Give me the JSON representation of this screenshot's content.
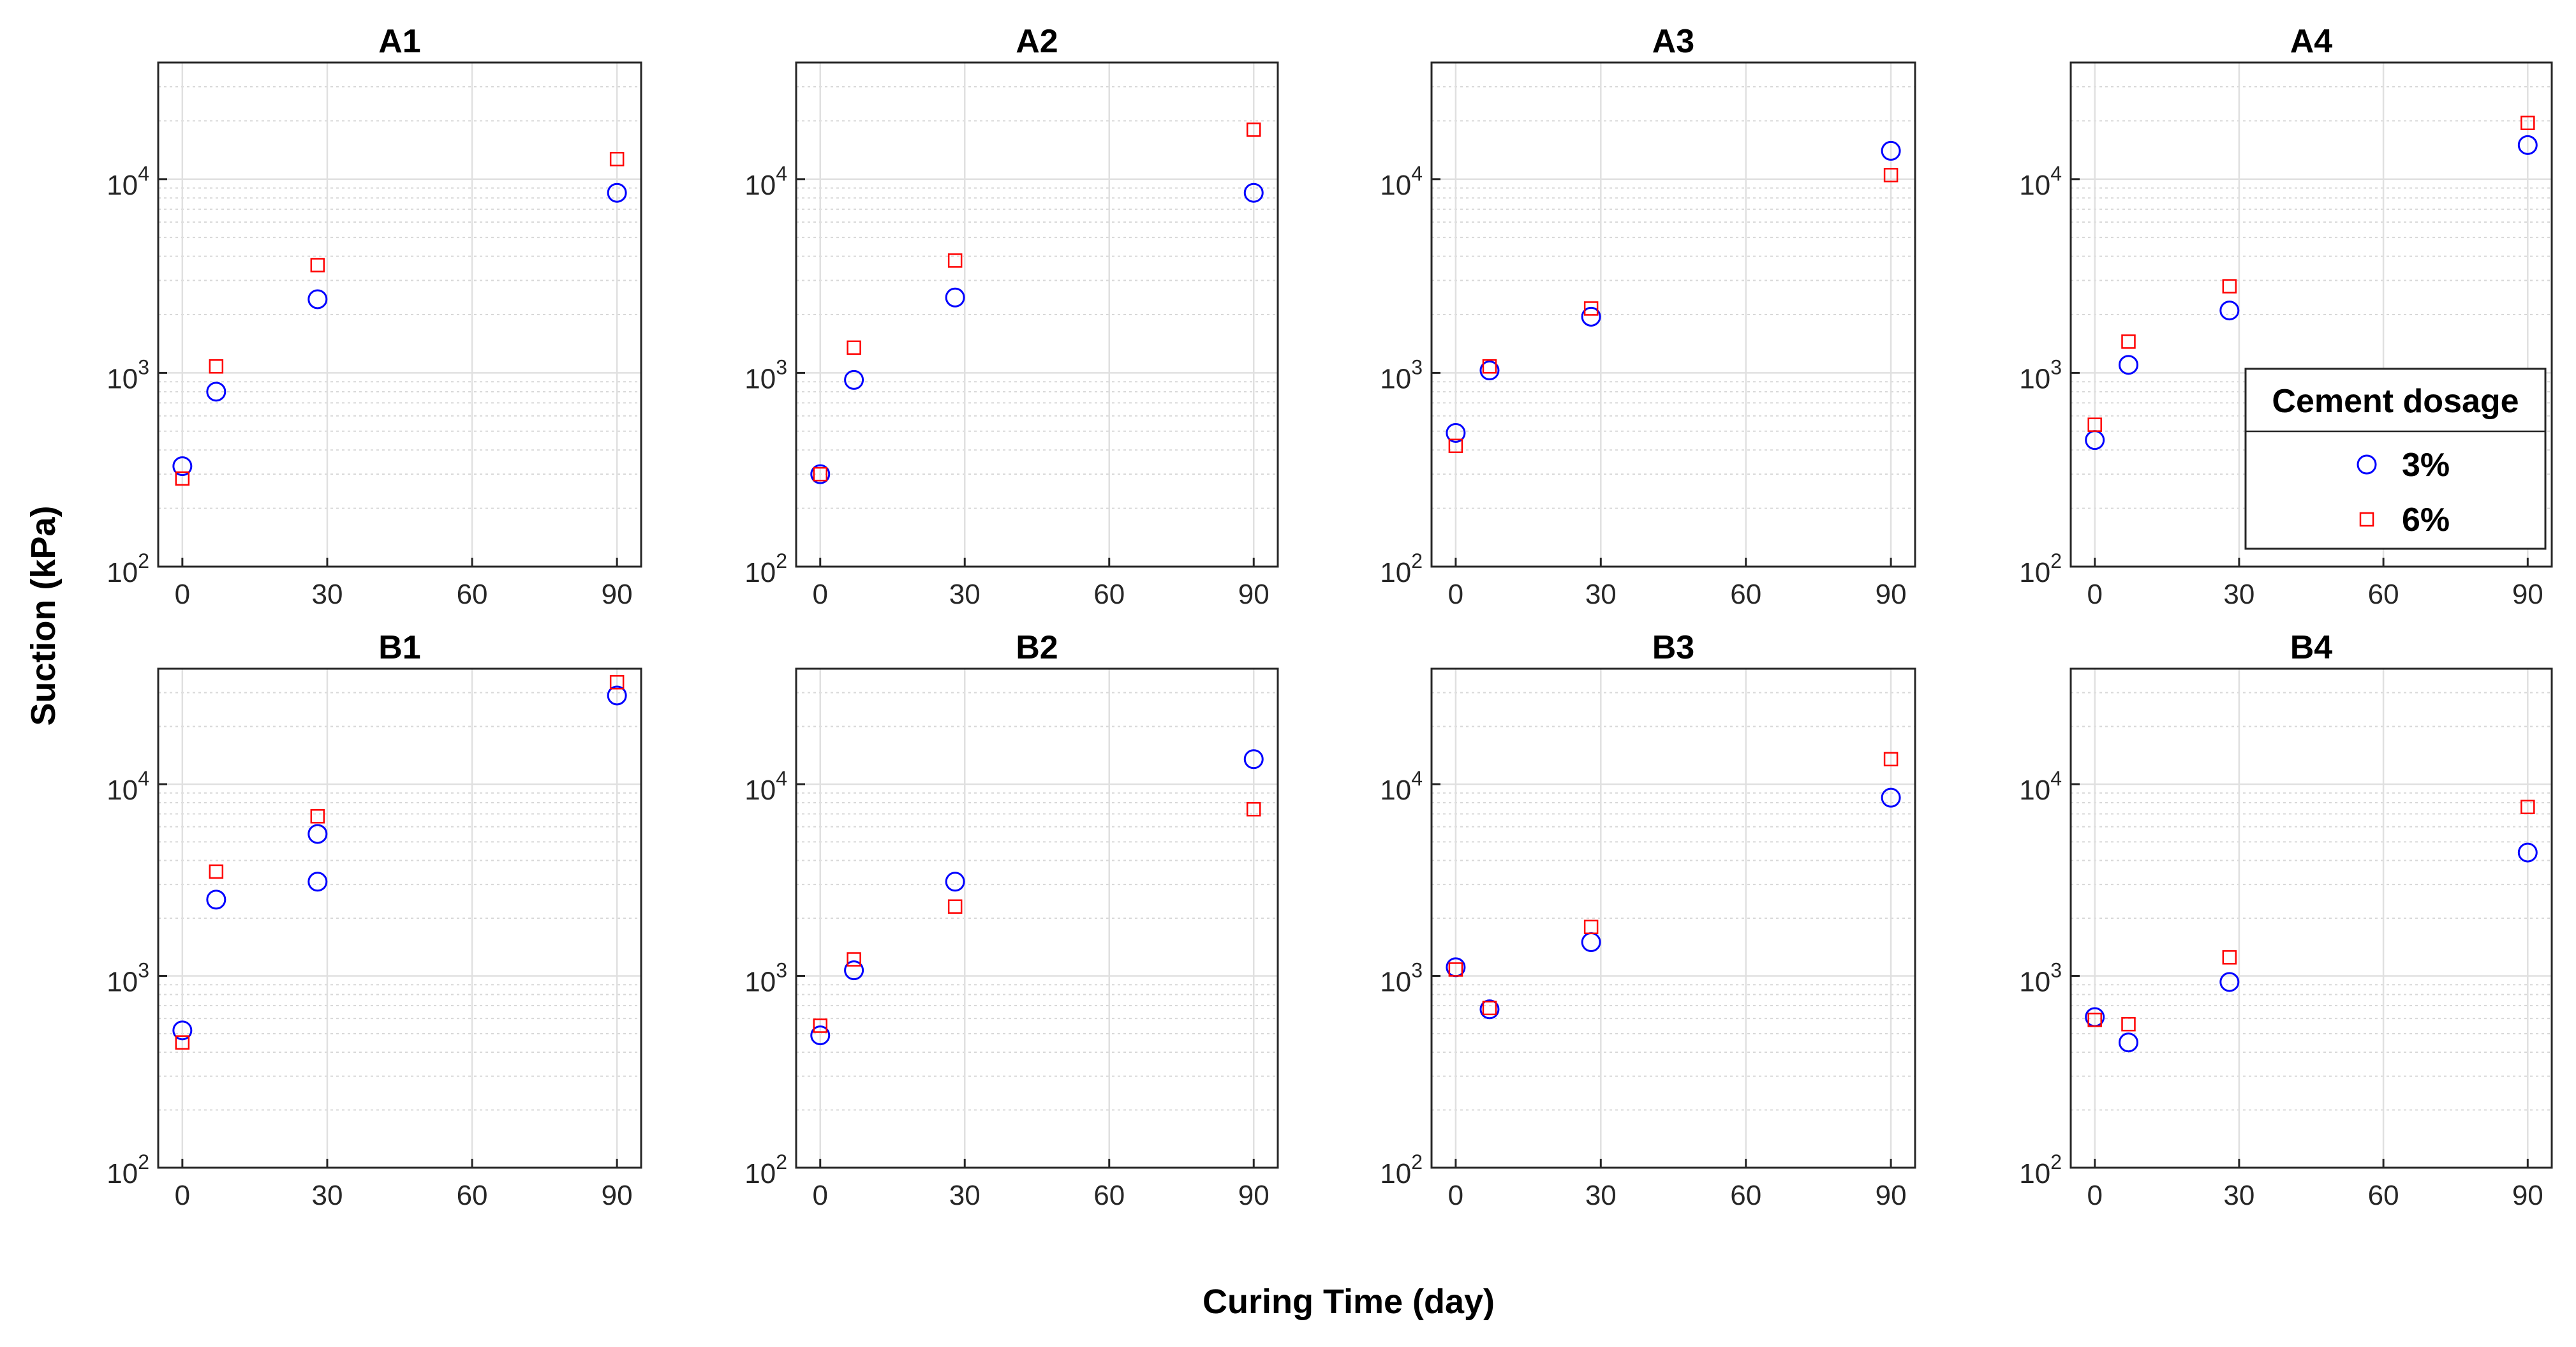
{
  "chart_data": {
    "type": "scatter",
    "xlabel": "Curing Time (day)",
    "ylabel": "Suction (kPa)",
    "xlim": [
      -5,
      95
    ],
    "ylim": [
      100,
      40000
    ],
    "yscale": "log",
    "xticks": [
      0,
      30,
      60,
      90
    ],
    "yticks": [
      100,
      1000,
      10000
    ],
    "grid": true,
    "colors": {
      "3%": "#0000ff",
      "6%": "#ff0000"
    },
    "legend": {
      "title": "Cement dosage",
      "entries": [
        "3%",
        "6%"
      ],
      "markers": [
        "circle",
        "square"
      ],
      "placement": "inside right of panel A4"
    },
    "panels": [
      {
        "title": "A1",
        "series": [
          {
            "name": "3%",
            "x": [
              0,
              7,
              28,
              90
            ],
            "y": [
              330,
              800,
              2400,
              8500
            ]
          },
          {
            "name": "6%",
            "x": [
              0,
              7,
              28,
              90
            ],
            "y": [
              285,
              1080,
              3600,
              12700
            ]
          }
        ]
      },
      {
        "title": "A2",
        "series": [
          {
            "name": "3%",
            "x": [
              0,
              7,
              28,
              90
            ],
            "y": [
              300,
              920,
              2450,
              8500
            ]
          },
          {
            "name": "6%",
            "x": [
              0,
              7,
              28,
              90
            ],
            "y": [
              300,
              1350,
              3800,
              18000
            ]
          }
        ]
      },
      {
        "title": "A3",
        "series": [
          {
            "name": "3%",
            "x": [
              0,
              7,
              28,
              90
            ],
            "y": [
              490,
              1030,
              1950,
              14000
            ]
          },
          {
            "name": "6%",
            "x": [
              0,
              7,
              28,
              90
            ],
            "y": [
              420,
              1080,
              2150,
              10500
            ]
          }
        ]
      },
      {
        "title": "A4",
        "series": [
          {
            "name": "3%",
            "x": [
              0,
              7,
              28,
              90
            ],
            "y": [
              450,
              1100,
              2100,
              15000
            ]
          },
          {
            "name": "6%",
            "x": [
              0,
              7,
              28,
              90
            ],
            "y": [
              540,
              1450,
              2800,
              19500
            ]
          }
        ]
      },
      {
        "title": "B1",
        "series": [
          {
            "name": "3%",
            "x": [
              0,
              7,
              28,
              28,
              90
            ],
            "y": [
              520,
              2500,
              5500,
              3100,
              29000
            ]
          },
          {
            "name": "6%",
            "x": [
              0,
              7,
              28,
              90
            ],
            "y": [
              450,
              3500,
              6800,
              34000
            ]
          }
        ]
      },
      {
        "title": "B2",
        "series": [
          {
            "name": "3%",
            "x": [
              0,
              7,
              28,
              90
            ],
            "y": [
              490,
              1070,
              3100,
              13500
            ]
          },
          {
            "name": "6%",
            "x": [
              0,
              7,
              28,
              90
            ],
            "y": [
              550,
              1220,
              2300,
              7400
            ]
          }
        ]
      },
      {
        "title": "B3",
        "series": [
          {
            "name": "3%",
            "x": [
              0,
              7,
              28,
              90
            ],
            "y": [
              1110,
              670,
              1500,
              8500
            ]
          },
          {
            "name": "6%",
            "x": [
              0,
              7,
              28,
              90
            ],
            "y": [
              1080,
              680,
              1800,
              13500
            ]
          }
        ]
      },
      {
        "title": "B4",
        "series": [
          {
            "name": "3%",
            "x": [
              0,
              7,
              28,
              90
            ],
            "y": [
              610,
              450,
              930,
              4400
            ]
          },
          {
            "name": "6%",
            "x": [
              0,
              7,
              28,
              90
            ],
            "y": [
              590,
              560,
              1250,
              7600
            ]
          }
        ]
      }
    ]
  }
}
